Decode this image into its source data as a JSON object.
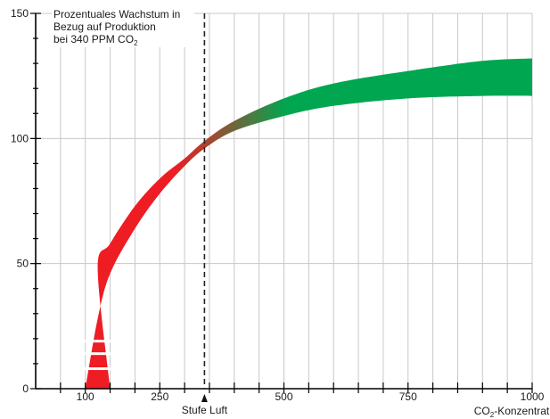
{
  "chart_data": {
    "type": "area",
    "title": "Prozentuales Wachstum in Bezug auf Produktion bei 340 PPM CO₂",
    "title_lines": [
      {
        "main": "Prozentuales Wachstum in",
        "sub": ""
      },
      {
        "main": "Bezug auf Produktion",
        "sub": ""
      },
      {
        "main": "bei 340 PPM CO",
        "sub": "2"
      }
    ],
    "xlabel": {
      "main": "CO",
      "sub": "2",
      "rest": "-Konzentration"
    },
    "ylabel": "",
    "xlim": [
      0,
      1000
    ],
    "ylim": [
      0,
      150
    ],
    "x_ticks": [
      100,
      250,
      500,
      750,
      1000
    ],
    "x_minor_step": 50,
    "y_ticks": [
      0,
      50,
      100,
      150
    ],
    "y_minor_step": 10,
    "grid": true,
    "marker": {
      "x": 340,
      "label": "Stufe Luft",
      "style": "dashed"
    },
    "band": {
      "x": [
        100,
        125,
        150,
        200,
        250,
        300,
        340,
        400,
        500,
        600,
        750,
        900,
        1000
      ],
      "lower": [
        0,
        28,
        46,
        64,
        78,
        89,
        96,
        103,
        109,
        113,
        116,
        117,
        117
      ],
      "upper": [
        0,
        48,
        58,
        73,
        84,
        92,
        99,
        107,
        116,
        122,
        127,
        131,
        132
      ],
      "bottom_width_x": [
        100,
        150
      ],
      "colors": {
        "low": "#ee1c23",
        "high": "#00a650"
      }
    },
    "band_gaps_y": [
      8,
      14,
      19
    ]
  }
}
